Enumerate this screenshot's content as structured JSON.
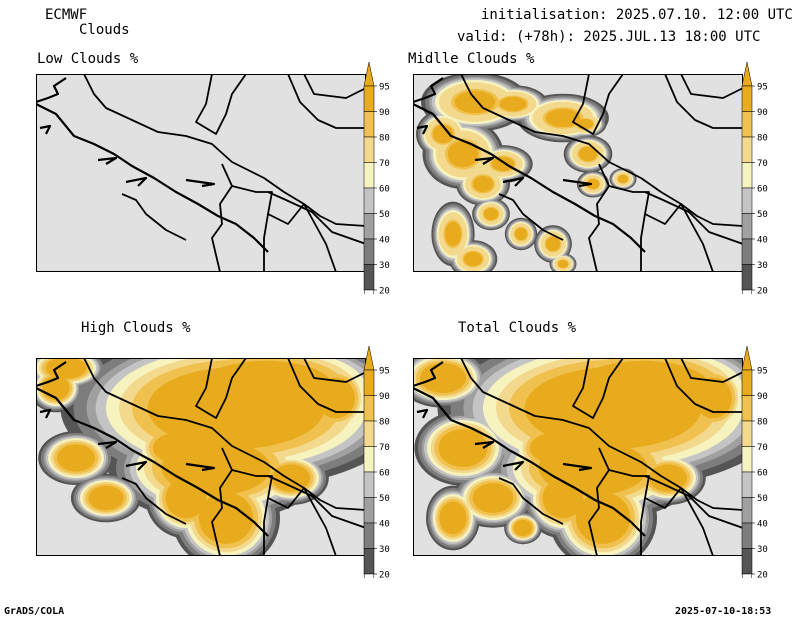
{
  "header": {
    "model": "ECMWF",
    "product": "Clouds",
    "init": "initialisation: 2025.07.10. 12:00 UTC",
    "valid": "valid: (+78h): 2025.JUL.13 18:00 UTC"
  },
  "panels": [
    {
      "title": "Low Clouds %"
    },
    {
      "title": "Midlle Clouds %"
    },
    {
      "title": "High Clouds %"
    },
    {
      "title": "Total Clouds %"
    }
  ],
  "legend": {
    "levels": [
      "20",
      "30",
      "40",
      "50",
      "60",
      "70",
      "80",
      "90",
      "95"
    ],
    "colors": [
      "#ffffff",
      "#555555",
      "#7d7d7d",
      "#a0a0a0",
      "#c4c4c4",
      "#f7f3bf",
      "#f3d98e",
      "#f0c14e",
      "#e9ab1e"
    ]
  },
  "colors": {
    "base": "#e1e1e1",
    "map_line": "#000000"
  },
  "footer": {
    "left": "GrADS/COLA",
    "right": "2025-07-10-18:53"
  }
}
